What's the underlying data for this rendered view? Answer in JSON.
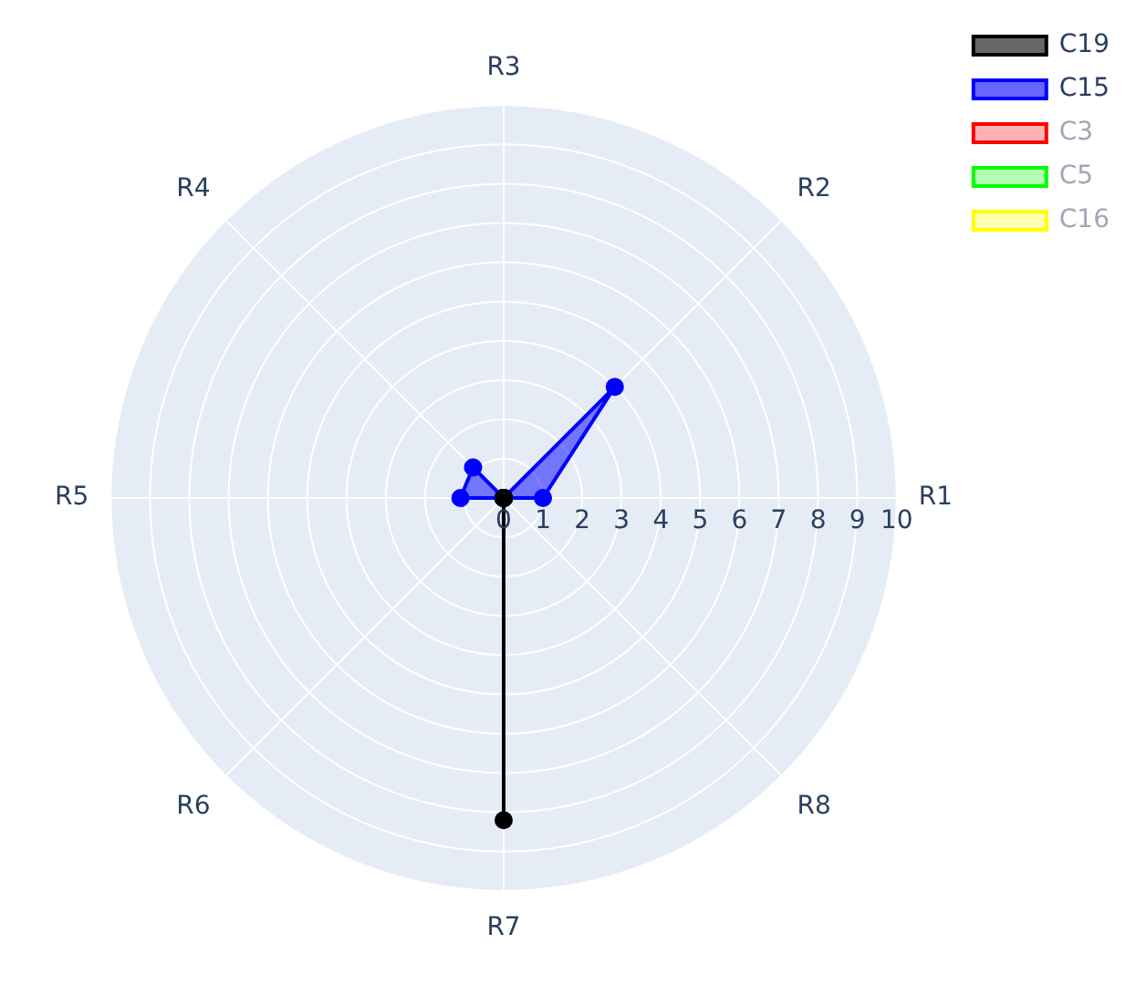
{
  "chart_data": {
    "type": "radar",
    "categories": [
      "R3",
      "R2",
      "R1",
      "R8",
      "R7",
      "R6",
      "R5",
      "R4"
    ],
    "series": [
      {
        "name": "C19",
        "color": "#000000",
        "values": [
          0,
          0,
          0,
          0,
          8.2,
          0,
          0,
          0
        ]
      },
      {
        "name": "C15",
        "color": "#0000ff",
        "values": [
          0,
          4,
          1,
          0,
          0,
          0,
          1.1,
          1.1
        ]
      },
      {
        "name": "C3",
        "color": "#ff0000",
        "values": [
          null,
          null,
          null,
          null,
          null,
          null,
          null,
          null
        ]
      },
      {
        "name": "C5",
        "color": "#00ff00",
        "values": [
          null,
          null,
          null,
          null,
          null,
          null,
          null,
          null
        ]
      },
      {
        "name": "C16",
        "color": "#ffff00",
        "values": [
          null,
          null,
          null,
          null,
          null,
          null,
          null,
          null
        ]
      }
    ],
    "ylim": [
      0,
      10
    ],
    "yticks": [
      0,
      1,
      2,
      3,
      4,
      5,
      6,
      7,
      8,
      9,
      10
    ],
    "grid": true,
    "legend": "top right",
    "marker": "circle"
  }
}
